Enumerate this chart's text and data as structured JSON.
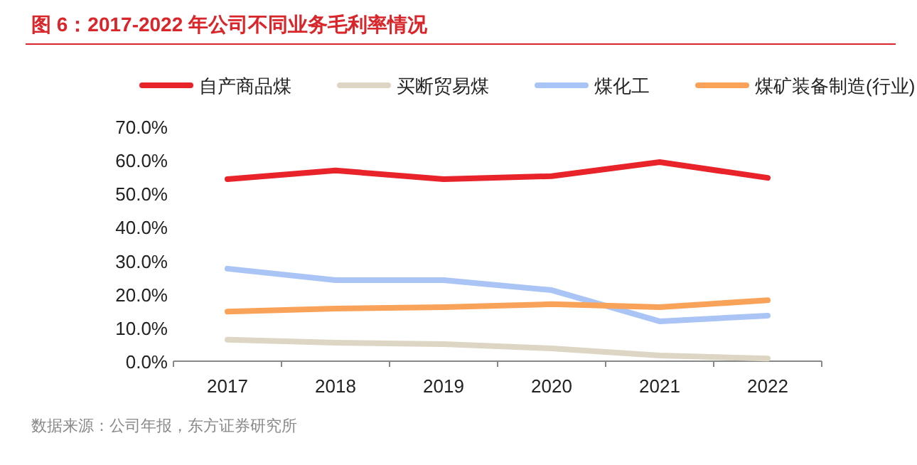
{
  "chart_data": {
    "type": "line",
    "title": "图 6：2017-2022 年公司不同业务毛利率情况",
    "categories": [
      "2017",
      "2018",
      "2019",
      "2020",
      "2021",
      "2022"
    ],
    "series": [
      {
        "name": "自产商品煤",
        "color": "#e8232a",
        "values": [
          54.3,
          56.9,
          54.3,
          55.2,
          59.4,
          54.7
        ]
      },
      {
        "name": "买断贸易煤",
        "color": "#ddd6c4",
        "values": [
          6.4,
          5.5,
          5.1,
          3.8,
          1.7,
          0.8
        ]
      },
      {
        "name": "煤化工",
        "color": "#a9c4f5",
        "values": [
          27.6,
          24.2,
          24.2,
          21.2,
          11.9,
          13.6
        ]
      },
      {
        "name": "煤矿装备制造(行业)",
        "color": "#f9a35a",
        "values": [
          14.8,
          15.7,
          16.1,
          17.0,
          16.1,
          18.2
        ]
      }
    ],
    "ylim": [
      0,
      70
    ],
    "yticks": [
      {
        "value": 0,
        "label": "0.0%"
      },
      {
        "value": 10,
        "label": "10.0%"
      },
      {
        "value": 20,
        "label": "20.0%"
      },
      {
        "value": 30,
        "label": "30.0%"
      },
      {
        "value": 40,
        "label": "40.0%"
      },
      {
        "value": 50,
        "label": "50.0%"
      },
      {
        "value": 60,
        "label": "60.0%"
      },
      {
        "value": 70,
        "label": "70.0%"
      }
    ],
    "legend": "top",
    "grid": false,
    "marker": "none",
    "line_style": "solid",
    "annotations": [
      "数据来源：公司年报，东方证券研究所"
    ]
  }
}
